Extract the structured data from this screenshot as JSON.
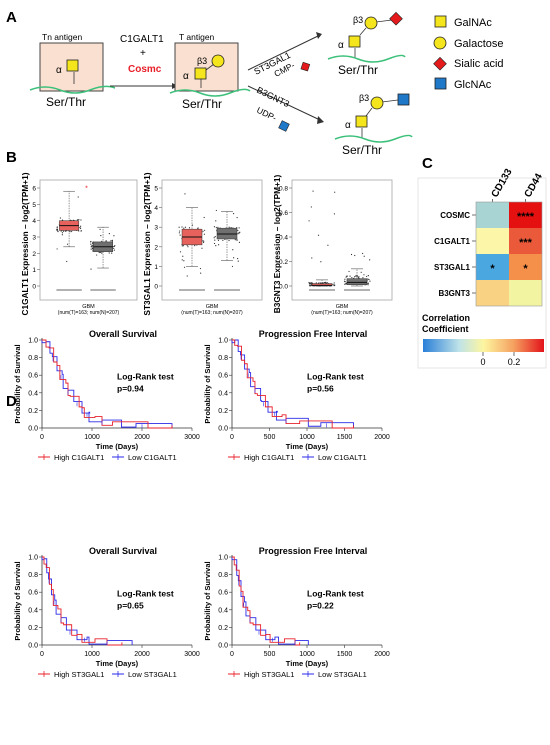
{
  "panel_a": {
    "label": "A",
    "tn_box_title": "Tn antigen",
    "t_box_title": "T antigen",
    "alpha": "α",
    "beta3": "β3",
    "serthr": "Ser/Thr",
    "enzyme1": "C1GALT1",
    "plus": "+",
    "chaperone": "Cosmc",
    "enzyme2": "ST3GAL1",
    "donor2": "CMP-",
    "enzyme3": "B3GNT3",
    "donor3": "UDP-",
    "legend": [
      "GalNAc",
      "Galactose",
      "Sialic acid",
      "GlcNAc"
    ],
    "colors": {
      "galnac": "#f5e51d",
      "galactose": "#f5e51d",
      "sialic": "#e41a1c",
      "glcnac": "#1f78c8",
      "chain": "#3cc07a",
      "box": "#f9e0d0",
      "cosmc": "#e8202a"
    }
  },
  "panel_b": {
    "label": "B",
    "ylabels": [
      "C1GALT1 Expression – log2(TPM+1)",
      "ST3GAL1 Expression – log2(TPM+1)",
      "B3GNT3 Expression – log2(TPM+1)"
    ],
    "xlabel": "GBM",
    "subtitle": "(num(T)=163; num(N)=207)",
    "yticks_1": [
      "0",
      "1",
      "2",
      "3",
      "4",
      "5",
      "6"
    ],
    "yticks_2": [
      "0",
      "1",
      "2",
      "3",
      "4",
      "5"
    ],
    "yticks_3": [
      "0.0",
      "0.2",
      "0.4",
      "0.6",
      "0.8"
    ],
    "tumor_color": "#e8625d",
    "normal_color": "#707070"
  },
  "panel_c": {
    "label": "C",
    "columns": [
      "CD133",
      "CD44"
    ],
    "rows": [
      "COSMC",
      "C1GALT1",
      "ST3GAL1",
      "B3GNT3"
    ],
    "stars": [
      [
        "",
        "****"
      ],
      [
        "",
        "***"
      ],
      [
        "*",
        "*"
      ],
      [
        "",
        ""
      ]
    ],
    "cell_colors": [
      [
        "#a8d4d4",
        "#e51010"
      ],
      [
        "#fcf6a8",
        "#ea5a3a"
      ],
      [
        "#4aa7e0",
        "#f5904a"
      ],
      [
        "#f9d283",
        "#f2f4a2"
      ]
    ],
    "colorbar_title_1": "Correlation",
    "colorbar_title_2": "Coefficient",
    "colorbar_ticks": [
      "0",
      "0.2"
    ]
  },
  "panel_d": {
    "label": "D",
    "ylabel": "Probability of Survival",
    "xlabel": "Time (Days)",
    "high_color": "#e8202a",
    "low_color": "#2a2ae8",
    "plots": [
      {
        "title": "Overall Survival",
        "test": "Log-Rank test",
        "p": "p=0.94",
        "xticks": [
          "0",
          "1000",
          "2000",
          "3000"
        ],
        "legend_high": "High C1GALT1",
        "legend_low": "Low C1GALT1"
      },
      {
        "title": "Progression Free Interval",
        "test": "Log-Rank test",
        "p": "p=0.56",
        "xticks": [
          "0",
          "500",
          "1000",
          "1500",
          "2000"
        ],
        "legend_high": "High C1GALT1",
        "legend_low": "Low C1GALT1"
      },
      {
        "title": "Overall Survival",
        "test": "Log-Rank test",
        "p": "p=0.65",
        "xticks": [
          "0",
          "1000",
          "2000",
          "3000"
        ],
        "legend_high": "High ST3GAL1",
        "legend_low": "Low ST3GAL1"
      },
      {
        "title": "Progression Free Interval",
        "test": "Log-Rank test",
        "p": "p=0.22",
        "xticks": [
          "0",
          "500",
          "1000",
          "1500",
          "2000"
        ],
        "legend_high": "High ST3GAL1",
        "legend_low": "Low ST3GAL1"
      }
    ],
    "yticks": [
      "0.0",
      "0.2",
      "0.4",
      "0.6",
      "0.8",
      "1.0"
    ]
  }
}
